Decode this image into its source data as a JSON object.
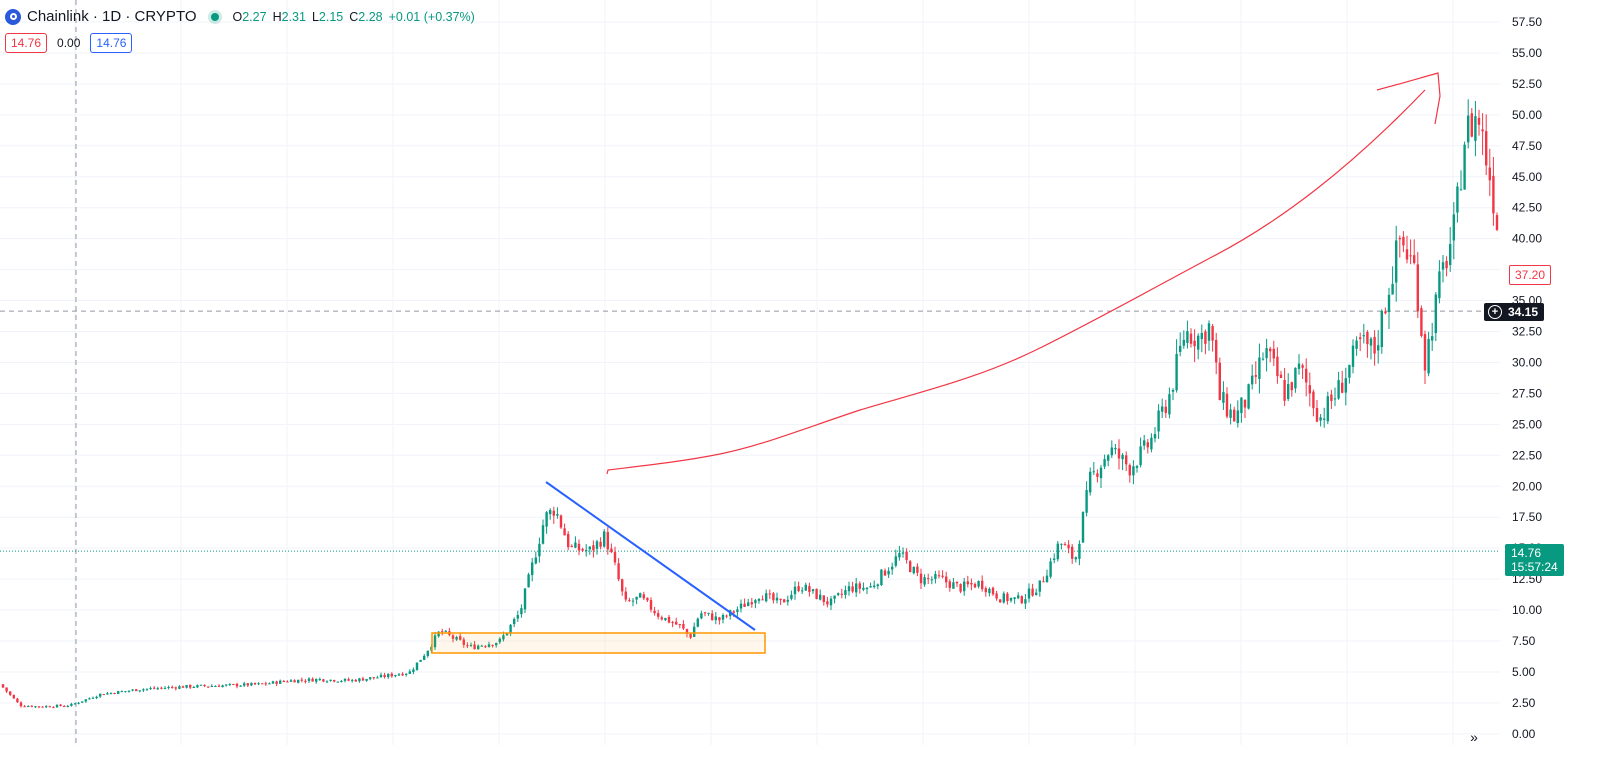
{
  "header": {
    "symbol": "Chainlink · 1D · CRYPTO",
    "ohlc": {
      "o_label": "O",
      "o": "2.27",
      "h_label": "H",
      "h": "2.31",
      "l_label": "L",
      "l": "2.15",
      "c_label": "C",
      "c": "2.28",
      "change": "+0.01 (+0.37%)"
    },
    "logo_icon": "chainlink-logo-icon",
    "status_icon": "market-open-dot-icon"
  },
  "indicator": {
    "value_red": "14.76",
    "value_mid": "0.00",
    "value_blue": "14.76"
  },
  "price_labels": {
    "last_red": "37.20",
    "crosshair": "34.15",
    "current": "14.76",
    "countdown": "15:57:24"
  },
  "nav": {
    "scroll_right_icon": "double-chevron-right-icon",
    "glyph": "»"
  },
  "colors": {
    "up": "#089981",
    "down": "#f23645",
    "trendline": "#2962ff",
    "zone": "#ff9800",
    "drawing": "#f23645",
    "grid": "#f0f3fa"
  },
  "chart_data": {
    "type": "candlestick",
    "title": "Chainlink · 1D · CRYPTO",
    "ylim": [
      0,
      57.5
    ],
    "y_ticks": [
      "57.50",
      "55.00",
      "52.50",
      "50.00",
      "47.50",
      "45.00",
      "42.50",
      "40.00",
      "37.50",
      "35.00",
      "32.50",
      "30.00",
      "27.50",
      "25.00",
      "22.50",
      "20.00",
      "17.50",
      "15.00",
      "12.50",
      "10.00",
      "7.50",
      "5.00",
      "2.50",
      "0.00"
    ],
    "y_axis_side": "right",
    "grid": true,
    "price_path": [
      [
        0,
        4.0
      ],
      [
        20,
        2.3
      ],
      [
        40,
        2.2
      ],
      [
        70,
        2.3
      ],
      [
        100,
        3.2
      ],
      [
        140,
        3.6
      ],
      [
        180,
        3.8
      ],
      [
        220,
        3.9
      ],
      [
        260,
        4.0
      ],
      [
        290,
        4.3
      ],
      [
        320,
        4.4
      ],
      [
        350,
        4.3
      ],
      [
        380,
        4.6
      ],
      [
        410,
        5.0
      ],
      [
        425,
        6.5
      ],
      [
        440,
        8.3
      ],
      [
        470,
        7.0
      ],
      [
        500,
        7.5
      ],
      [
        520,
        9.8
      ],
      [
        532,
        13.5
      ],
      [
        545,
        17.5
      ],
      [
        555,
        18.2
      ],
      [
        570,
        15.0
      ],
      [
        590,
        14.8
      ],
      [
        605,
        16.0
      ],
      [
        615,
        13.5
      ],
      [
        625,
        10.5
      ],
      [
        640,
        11.0
      ],
      [
        660,
        9.5
      ],
      [
        680,
        8.7
      ],
      [
        690,
        7.8
      ],
      [
        700,
        9.8
      ],
      [
        720,
        9.2
      ],
      [
        740,
        10.2
      ],
      [
        760,
        11.3
      ],
      [
        780,
        10.5
      ],
      [
        800,
        12.0
      ],
      [
        830,
        10.5
      ],
      [
        850,
        11.8
      ],
      [
        870,
        11.8
      ],
      [
        900,
        14.5
      ],
      [
        920,
        12.5
      ],
      [
        940,
        12.5
      ],
      [
        960,
        11.8
      ],
      [
        980,
        12.2
      ],
      [
        1000,
        11.0
      ],
      [
        1020,
        10.8
      ],
      [
        1040,
        12.0
      ],
      [
        1060,
        15.5
      ],
      [
        1075,
        14.0
      ],
      [
        1090,
        20.5
      ],
      [
        1110,
        23.0
      ],
      [
        1130,
        21.5
      ],
      [
        1150,
        23.5
      ],
      [
        1170,
        27.5
      ],
      [
        1185,
        32.5
      ],
      [
        1200,
        32.0
      ],
      [
        1210,
        33.0
      ],
      [
        1220,
        27.0
      ],
      [
        1235,
        25.5
      ],
      [
        1250,
        27.5
      ],
      [
        1265,
        31.0
      ],
      [
        1285,
        27.5
      ],
      [
        1300,
        29.5
      ],
      [
        1320,
        25.5
      ],
      [
        1340,
        28.0
      ],
      [
        1360,
        31.5
      ],
      [
        1375,
        31.0
      ],
      [
        1390,
        36.5
      ],
      [
        1400,
        40.0
      ],
      [
        1415,
        37.5
      ],
      [
        1425,
        30.0
      ],
      [
        1440,
        36.5
      ],
      [
        1455,
        41.0
      ],
      [
        1465,
        48.5
      ],
      [
        1478,
        50.0
      ],
      [
        1490,
        45.0
      ],
      [
        1500,
        40.0
      ]
    ],
    "annotations": {
      "trendline": "descending blue trendline",
      "zone": "orange support rectangle",
      "arrow": "freehand red up-arrow"
    }
  }
}
